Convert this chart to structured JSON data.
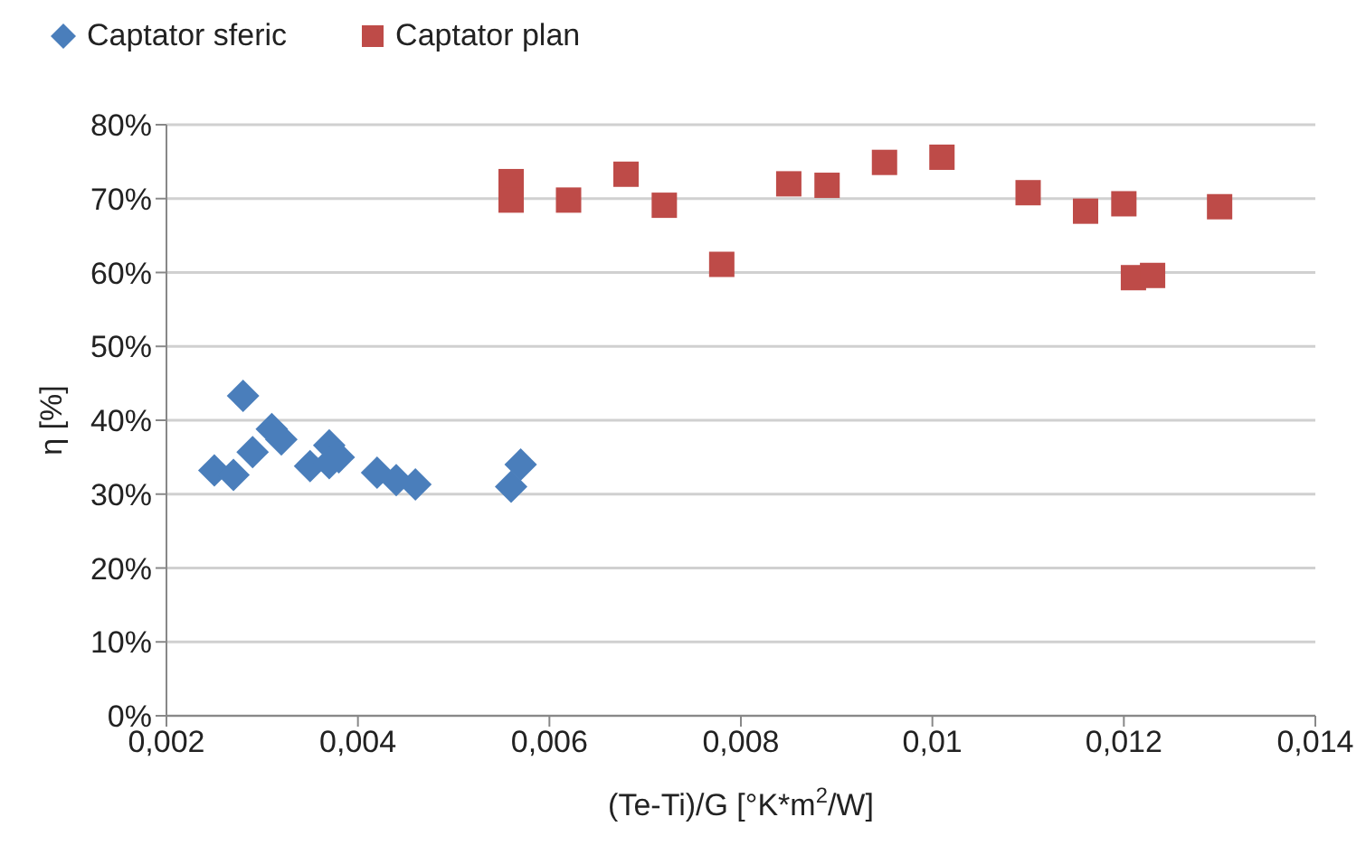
{
  "chart_data": {
    "type": "scatter",
    "xlabel": "(Te-Ti)/G [°K*m$^{2}$/W]",
    "ylabel": "η [%]",
    "xlim": [
      0.002,
      0.014
    ],
    "xticks": [
      {
        "value": 0.002,
        "label": "0,002"
      },
      {
        "value": 0.004,
        "label": "0,004"
      },
      {
        "value": 0.006,
        "label": "0,006"
      },
      {
        "value": 0.008,
        "label": "0,008"
      },
      {
        "value": 0.01,
        "label": "0,01"
      },
      {
        "value": 0.012,
        "label": "0,012"
      },
      {
        "value": 0.014,
        "label": "0,014"
      }
    ],
    "ylim": [
      0,
      80
    ],
    "yticks": [
      {
        "value": 0,
        "label": "0%"
      },
      {
        "value": 10,
        "label": "10%"
      },
      {
        "value": 20,
        "label": "20%"
      },
      {
        "value": 30,
        "label": "30%"
      },
      {
        "value": 40,
        "label": "40%"
      },
      {
        "value": 50,
        "label": "50%"
      },
      {
        "value": 60,
        "label": "60%"
      },
      {
        "value": 70,
        "label": "70%"
      },
      {
        "value": 80,
        "label": "80%"
      }
    ],
    "grid": "y",
    "legend": "top left",
    "series": [
      {
        "name": "Captator sferic",
        "color": "#4a7ebb",
        "marker": "diamond",
        "x": [
          0.0025,
          0.0027,
          0.0028,
          0.0029,
          0.0031,
          0.0032,
          0.0035,
          0.0037,
          0.0037,
          0.0038,
          0.0042,
          0.0044,
          0.0046,
          0.0056,
          0.0057
        ],
        "values": [
          33.2,
          32.6,
          43.3,
          35.7,
          38.8,
          37.4,
          33.8,
          36.6,
          34.2,
          35,
          32.9,
          31.9,
          31.3,
          31,
          34
        ]
      },
      {
        "name": "Captator plan",
        "color": "#be4b48",
        "marker": "square",
        "x": [
          0.0056,
          0.0056,
          0.0062,
          0.0068,
          0.0072,
          0.0078,
          0.0085,
          0.0089,
          0.0095,
          0.0101,
          0.011,
          0.0116,
          0.012,
          0.0121,
          0.0123,
          0.013
        ],
        "values": [
          72.3,
          69.8,
          69.8,
          73.3,
          69.1,
          61.1,
          72,
          71.8,
          74.9,
          75.6,
          70.8,
          68.3,
          69.3,
          59.3,
          59.6,
          68.9
        ]
      }
    ]
  }
}
